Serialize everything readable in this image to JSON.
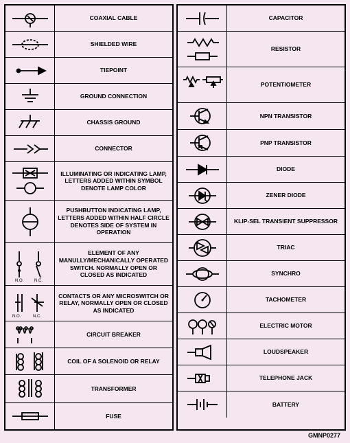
{
  "background_color": "#f5e6f0",
  "border_color": "#000000",
  "label_fontsize": 8.5,
  "left_column": [
    {
      "name": "coaxial-cable",
      "label": "COAXIAL CABLE",
      "h": ""
    },
    {
      "name": "shielded-wire",
      "label": "SHIELDED WIRE",
      "h": ""
    },
    {
      "name": "tiepoint",
      "label": "TIEPOINT",
      "h": ""
    },
    {
      "name": "ground-connection",
      "label": "GROUND CONNECTION",
      "h": ""
    },
    {
      "name": "chassis-ground",
      "label": "CHASSIS GROUND",
      "h": ""
    },
    {
      "name": "connector",
      "label": "CONNECTOR",
      "h": ""
    },
    {
      "name": "indicating-lamp",
      "label": "ILLUMINATING OR INDICATING LAMP, LETTERS ADDED WITHIN SYMBOL DENOTE LAMP COLOR",
      "h": "tall1"
    },
    {
      "name": "pushbutton-lamp",
      "label": "PUSHBUTTON INDICATING LAMP, LETTERS ADDED WITHIN HALF CIRCLE DENOTES SIDE OF SYSTEM IN OPERATION",
      "h": "tall2"
    },
    {
      "name": "switch",
      "label": "ELEMENT OF ANY MANULLY/MECHANICALLY OPERATED SWITCH. NORMALLY OPEN OR CLOSED AS INDICATED",
      "h": "tall3"
    },
    {
      "name": "microswitch",
      "label": "CONTACTS OR ANY MICROSWITCH OR RELAY, NORMALLY OPEN OR CLOSED AS INDICATED",
      "h": "tall4"
    },
    {
      "name": "circuit-breaker",
      "label": "CIRCUIT BREAKER",
      "h": ""
    },
    {
      "name": "solenoid-coil",
      "label": "COIL OF A SOLENOID OR RELAY",
      "h": ""
    },
    {
      "name": "transformer",
      "label": "TRANSFORMER",
      "h": ""
    },
    {
      "name": "fuse",
      "label": "FUSE",
      "h": ""
    }
  ],
  "right_column": [
    {
      "name": "capacitor",
      "label": "CAPACITOR",
      "h": ""
    },
    {
      "name": "resistor",
      "label": "RESISTOR",
      "h": "tall4"
    },
    {
      "name": "potentiometer",
      "label": "POTENTIOMETER",
      "h": "tall4"
    },
    {
      "name": "npn-transistor",
      "label": "NPN TRANSISTOR",
      "h": ""
    },
    {
      "name": "pnp-transistor",
      "label": "PNP TRANSISTOR",
      "h": ""
    },
    {
      "name": "diode",
      "label": "DIODE",
      "h": ""
    },
    {
      "name": "zener-diode",
      "label": "ZENER DIODE",
      "h": ""
    },
    {
      "name": "klip-sel",
      "label": "KLIP-SEL TRANSIENT SUPPRESSOR",
      "h": ""
    },
    {
      "name": "triac",
      "label": "TRIAC",
      "h": ""
    },
    {
      "name": "synchro",
      "label": "SYNCHRO",
      "h": ""
    },
    {
      "name": "tachometer",
      "label": "TACHOMETER",
      "h": ""
    },
    {
      "name": "electric-motor",
      "label": "ELECTRIC MOTOR",
      "h": ""
    },
    {
      "name": "loudspeaker",
      "label": "LOUDSPEAKER",
      "h": ""
    },
    {
      "name": "telephone-jack",
      "label": "TELEPHONE JACK",
      "h": ""
    },
    {
      "name": "battery",
      "label": "BATTERY",
      "h": ""
    }
  ],
  "footer": "GMNP0277",
  "switch_sublabels": {
    "no": "N.O.",
    "nc": "N.C."
  }
}
